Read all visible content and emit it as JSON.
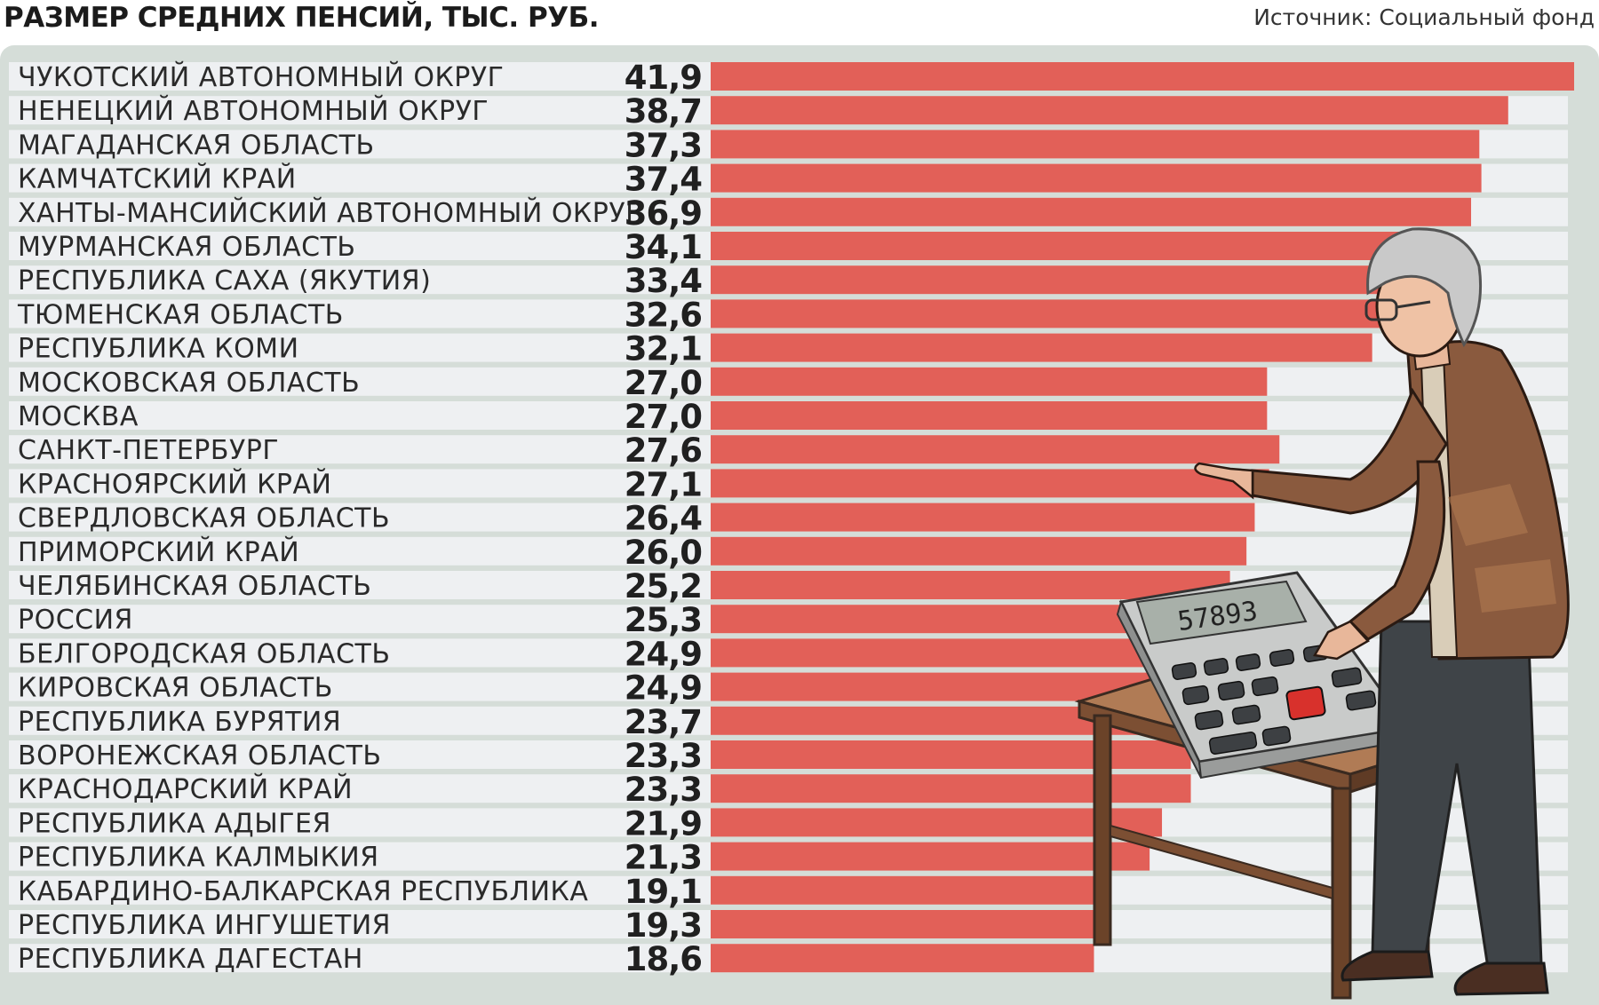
{
  "header": {
    "title": "РАЗМЕР СРЕДНИХ ПЕНСИЙ, ТЫС. РУБ.",
    "source": "Источник: Социальный фонд"
  },
  "colors": {
    "bar": "#e26058",
    "row_stripe": "#eef0f2",
    "panel": "#d5ddd8",
    "text": "#2a2a2a"
  },
  "chart_data": {
    "type": "bar",
    "orientation": "horizontal",
    "title": "РАЗМЕР СРЕДНИХ ПЕНСИЙ, ТЫС. РУБ.",
    "xlim": [
      0,
      41.9
    ],
    "grid": false,
    "legend": "none",
    "categories": [
      "ЧУКОТСКИЙ АВТОНОМНЫЙ ОКРУГ",
      "НЕНЕЦКИЙ АВТОНОМНЫЙ ОКРУГ",
      "МАГАДАНСКАЯ ОБЛАСТЬ",
      "КАМЧАТСКИЙ КРАЙ",
      "ХАНТЫ-МАНСИЙСКИЙ АВТОНОМНЫЙ ОКРУГ",
      "МУРМАНСКАЯ ОБЛАСТЬ",
      "РЕСПУБЛИКА САХА (ЯКУТИЯ)",
      "ТЮМЕНСКАЯ ОБЛАСТЬ",
      "РЕСПУБЛИКА КОМИ",
      "МОСКОВСКАЯ ОБЛАСТЬ",
      "МОСКВА",
      "САНКТ-ПЕТЕРБУРГ",
      "КРАСНОЯРСКИЙ КРАЙ",
      "СВЕРДЛОВСКАЯ ОБЛАСТЬ",
      "ПРИМОРСКИЙ КРАЙ",
      "ЧЕЛЯБИНСКАЯ ОБЛАСТЬ",
      "РОССИЯ",
      "БЕЛГОРОДСКАЯ ОБЛАСТЬ",
      "КИРОВСКАЯ ОБЛАСТЬ",
      "РЕСПУБЛИКА БУРЯТИЯ",
      "ВОРОНЕЖСКАЯ ОБЛАСТЬ",
      "КРАСНОДАРСКИЙ КРАЙ",
      "РЕСПУБЛИКА АДЫГЕЯ",
      "РЕСПУБЛИКА КАЛМЫКИЯ",
      "КАБАРДИНО-БАЛКАРСКАЯ РЕСПУБЛИКА",
      "РЕСПУБЛИКА ИНГУШЕТИЯ",
      "РЕСПУБЛИКА ДАГЕСТАН"
    ],
    "values": [
      41.9,
      38.7,
      37.3,
      37.4,
      36.9,
      34.1,
      33.4,
      32.6,
      32.1,
      27.0,
      27.0,
      27.6,
      27.1,
      26.4,
      26.0,
      25.2,
      25.3,
      24.9,
      24.9,
      23.7,
      23.3,
      23.3,
      21.9,
      21.3,
      19.1,
      19.3,
      18.6
    ],
    "value_labels": [
      "41,9",
      "38,7",
      "37,3",
      "37,4",
      "36,9",
      "34,1",
      "33,4",
      "32,6",
      "32,1",
      "27,0",
      "27,0",
      "27,6",
      "27,1",
      "26,4",
      "26,0",
      "25,2",
      "25,3",
      "24,9",
      "24,9",
      "23,7",
      "23,3",
      "23,3",
      "21,9",
      "21,3",
      "19,1",
      "19,3",
      "18,6"
    ]
  },
  "illustration": {
    "calculator_display": "57893"
  }
}
